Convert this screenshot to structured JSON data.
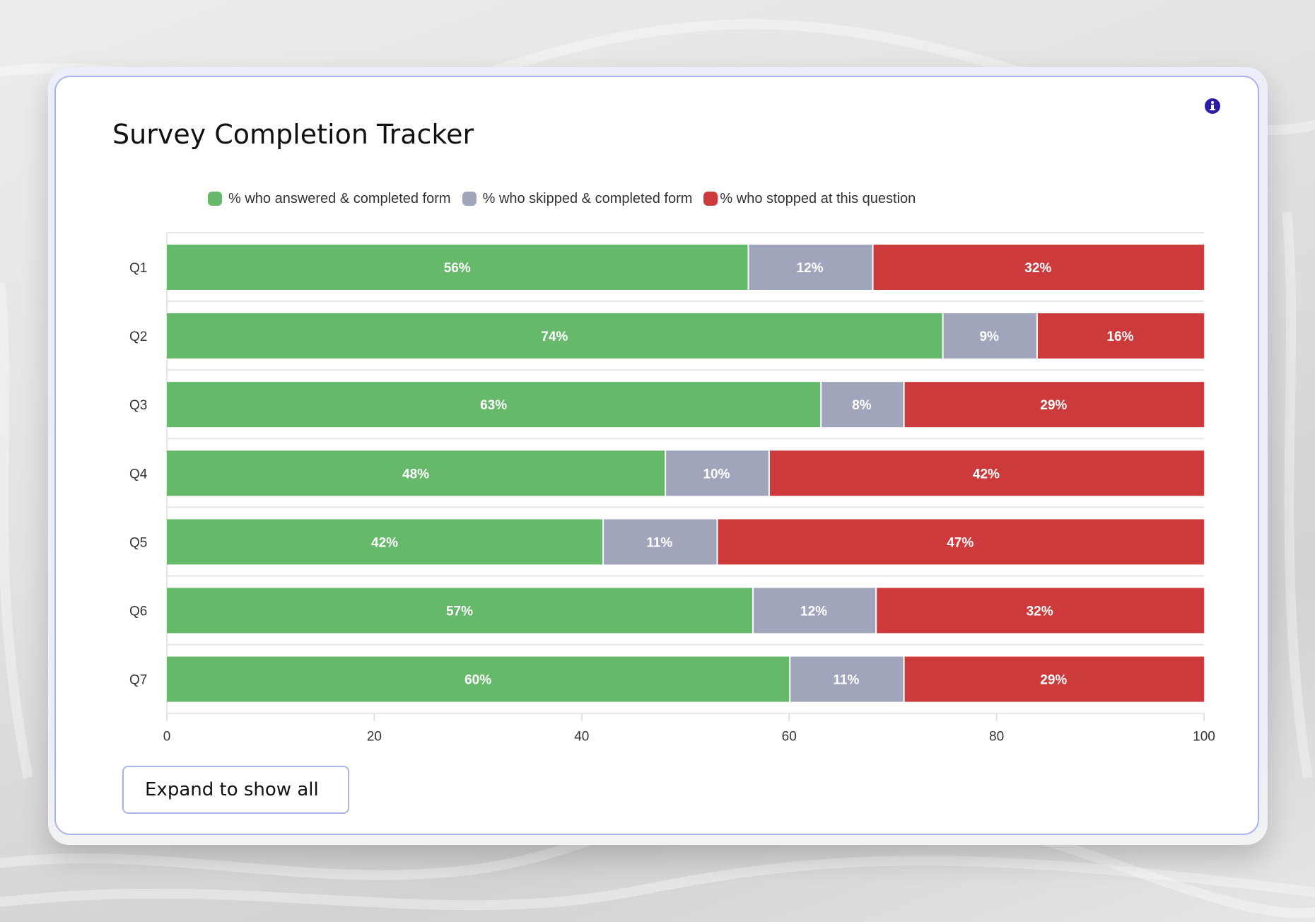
{
  "card": {
    "title": "Survey Completion Tracker",
    "info_icon": "info-circle-icon",
    "expand_button_label": "Expand to show all"
  },
  "colors": {
    "answered": "#66b86a",
    "skipped": "#a1a5bc",
    "stopped": "#cc3a3b",
    "accent_border": "#aab4ea",
    "info_icon": "#2c1ca8"
  },
  "chart_data": {
    "type": "bar",
    "orientation": "horizontal",
    "stacked": true,
    "title": "Survey Completion Tracker",
    "xlabel": "",
    "ylabel": "",
    "xlim": [
      0,
      100
    ],
    "x_ticks": [
      "0",
      "20",
      "40",
      "60",
      "80",
      "100"
    ],
    "x_tick_values": [
      0,
      20,
      40,
      60,
      80,
      100
    ],
    "grid": true,
    "legend_position": "top",
    "categories": [
      "Q1",
      "Q2",
      "Q3",
      "Q4",
      "Q5",
      "Q6",
      "Q7"
    ],
    "series": [
      {
        "name": "% who answered & completed form",
        "key": "answered",
        "values": [
          56,
          74,
          63,
          48,
          42,
          57,
          60
        ],
        "labels": [
          "56%",
          "74%",
          "63%",
          "48%",
          "42%",
          "57%",
          "60%"
        ]
      },
      {
        "name": "% who skipped & completed form",
        "key": "skipped",
        "values": [
          12,
          9,
          8,
          10,
          11,
          12,
          11
        ],
        "labels": [
          "12%",
          "9%",
          "8%",
          "10%",
          "11%",
          "12%",
          "11%"
        ]
      },
      {
        "name": "% who stopped at this question",
        "key": "stopped",
        "values": [
          32,
          16,
          29,
          42,
          47,
          32,
          29
        ],
        "labels": [
          "32%",
          "16%",
          "29%",
          "42%",
          "47%",
          "32%",
          "29%"
        ]
      }
    ]
  }
}
